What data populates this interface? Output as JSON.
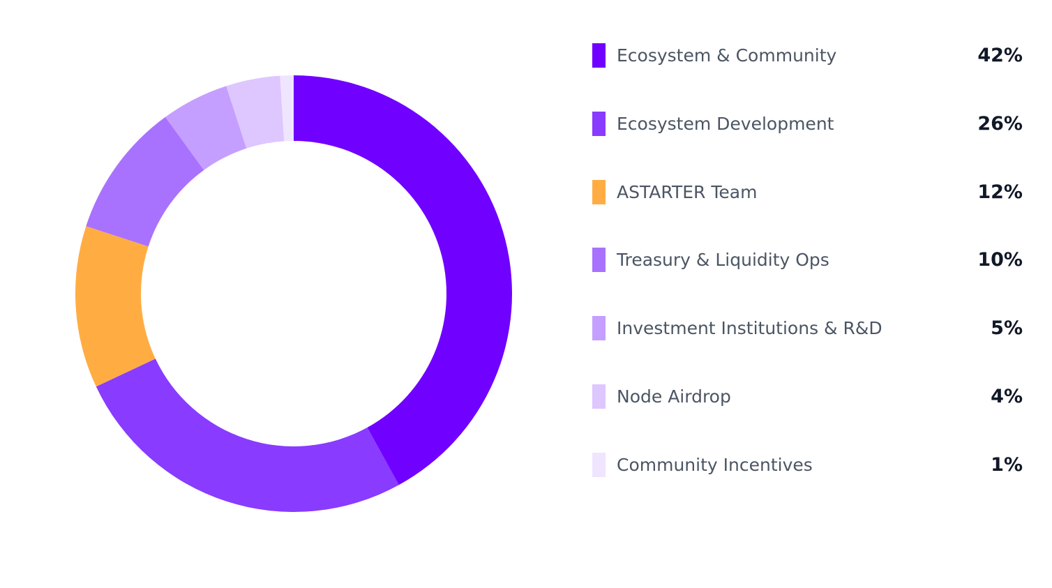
{
  "chart_data": {
    "type": "pie",
    "title": "",
    "donut": true,
    "legend_position": "right",
    "slices": [
      {
        "label": "Ecosystem & Community",
        "value": 42,
        "value_label": "42%",
        "color": "#7000ff"
      },
      {
        "label": "Ecosystem Development",
        "value": 26,
        "value_label": "26%",
        "color": "#893bff"
      },
      {
        "label": "ASTARTER Team",
        "value": 12,
        "value_label": "12%",
        "color": "#ffad43"
      },
      {
        "label": "Treasury & Liquidity Ops",
        "value": 10,
        "value_label": "10%",
        "color": "#a872ff"
      },
      {
        "label": "Investment Institutions & R&D",
        "value": 5,
        "value_label": "5%",
        "color": "#c59fff"
      },
      {
        "label": "Node Airdrop",
        "value": 4,
        "value_label": "4%",
        "color": "#dec6ff"
      },
      {
        "label": "Community Incentives",
        "value": 1,
        "value_label": "1%",
        "color": "#f0e5ff"
      }
    ]
  }
}
